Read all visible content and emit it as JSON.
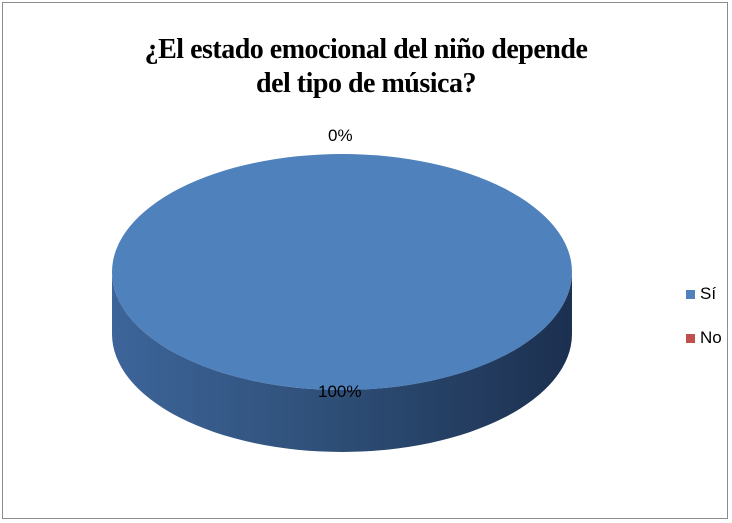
{
  "chart_data": {
    "type": "pie",
    "title_lines": [
      "¿El estado emocional del niño depende",
      "del tipo de música?"
    ],
    "categories": [
      "Sí",
      "No"
    ],
    "values": [
      100,
      0
    ],
    "data_labels": [
      "100%",
      "0%"
    ],
    "colors": {
      "Sí": "#4f81bd",
      "No": "#c0504d"
    },
    "style": "3d-pie",
    "legend_position": "right"
  }
}
